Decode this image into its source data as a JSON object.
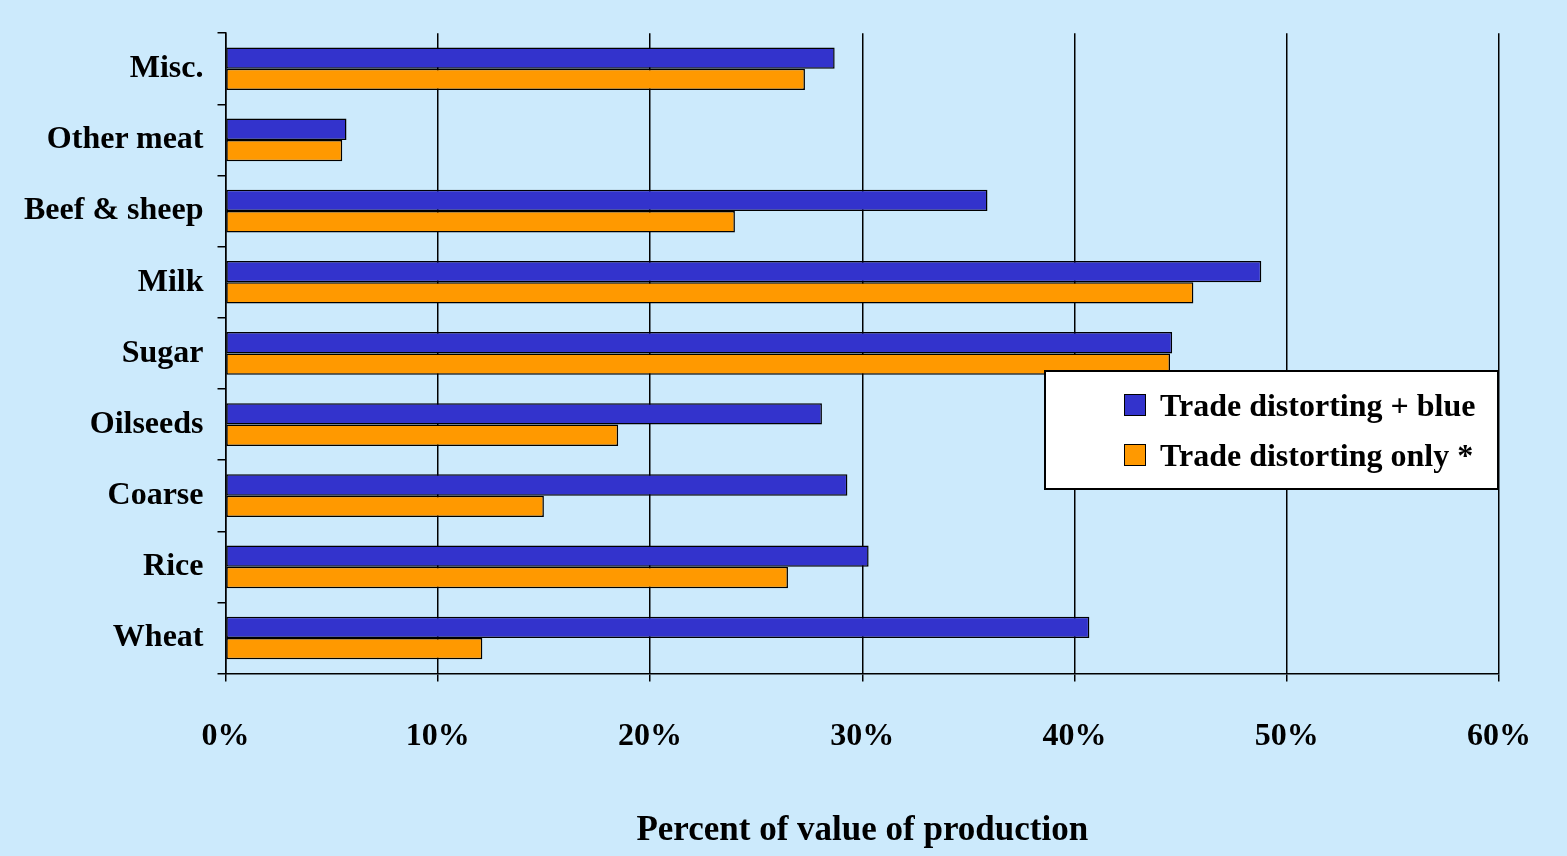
{
  "chart_data": {
    "type": "bar",
    "orientation": "horizontal",
    "xlabel": "Percent of value of production",
    "categories": [
      "Misc.",
      "Other meat",
      "Beef & sheep",
      "Milk",
      "Sugar",
      "Oilseeds",
      "Coarse",
      "Rice",
      "Wheat"
    ],
    "series": [
      {
        "name": "Trade distorting + blue",
        "color": "#3333cc",
        "values": [
          28.7,
          5.7,
          35.9,
          48.8,
          44.6,
          28.1,
          29.3,
          30.3,
          40.7
        ]
      },
      {
        "name": "Trade distorting only *",
        "color": "#ff9900",
        "values": [
          27.3,
          5.5,
          24.0,
          45.6,
          44.5,
          18.5,
          15.0,
          26.5,
          12.1
        ]
      }
    ],
    "xlim": [
      0,
      60
    ],
    "xticks": [
      {
        "value": 0,
        "label": "0%"
      },
      {
        "value": 10,
        "label": "10%"
      },
      {
        "value": 20,
        "label": "20%"
      },
      {
        "value": 30,
        "label": "30%"
      },
      {
        "value": 40,
        "label": "40%"
      },
      {
        "value": 50,
        "label": "50%"
      },
      {
        "value": 60,
        "label": "60%"
      }
    ],
    "grid": "x",
    "legend": "right"
  }
}
